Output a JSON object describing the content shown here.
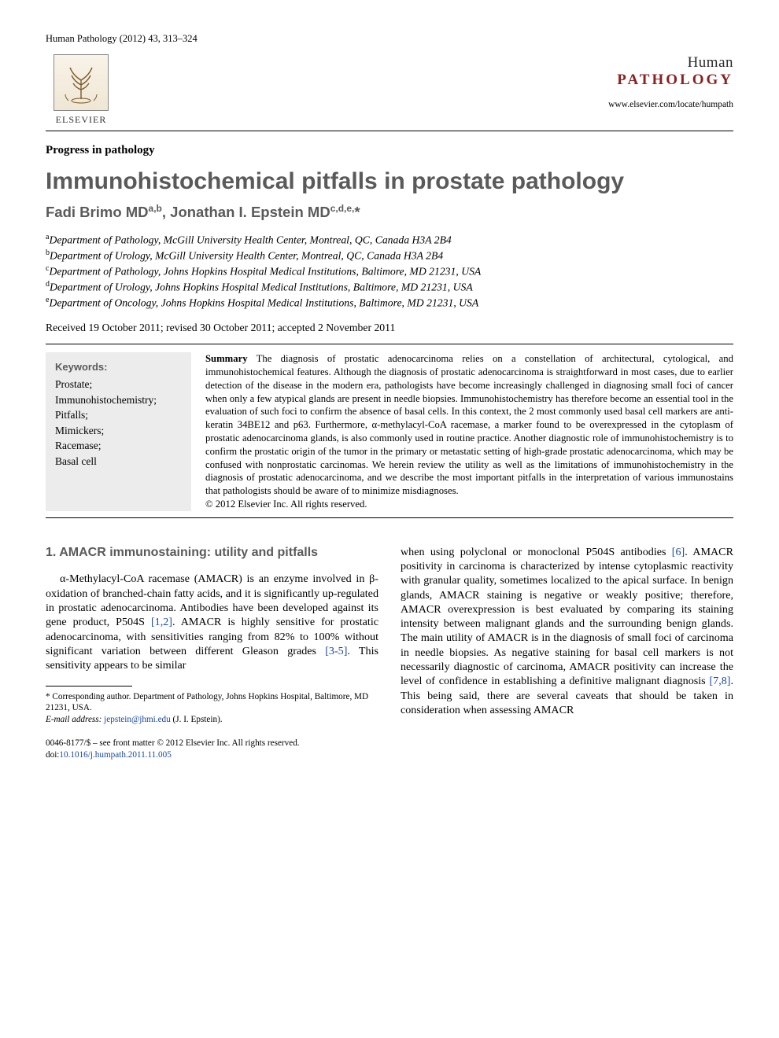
{
  "header": {
    "journal_ref": "Human Pathology (2012) 43, 313–324",
    "publisher_name": "ELSEVIER",
    "journal_name_line1": "Human",
    "journal_name_line2": "PATHOLOGY",
    "journal_url": "www.elsevier.com/locate/humpath"
  },
  "article": {
    "section_label": "Progress in pathology",
    "title": "Immunohistochemical pitfalls in prostate pathology",
    "authors_html": "Fadi Brimo MD<sup>a,b</sup>, Jonathan I. Epstein MD<sup>c,d,e,</sup>*",
    "affiliations": [
      {
        "sup": "a",
        "text": "Department of Pathology, McGill University Health Center, Montreal, QC, Canada H3A 2B4"
      },
      {
        "sup": "b",
        "text": "Department of Urology, McGill University Health Center, Montreal, QC, Canada H3A 2B4"
      },
      {
        "sup": "c",
        "text": "Department of Pathology, Johns Hopkins Hospital Medical Institutions, Baltimore, MD 21231, USA"
      },
      {
        "sup": "d",
        "text": "Department of Urology, Johns Hopkins Hospital Medical Institutions, Baltimore, MD 21231, USA"
      },
      {
        "sup": "e",
        "text": "Department of Oncology, Johns Hopkins Hospital Medical Institutions, Baltimore, MD 21231, USA"
      }
    ],
    "received": "Received 19 October 2011; revised 30 October 2011; accepted 2 November 2011"
  },
  "keywords": {
    "heading": "Keywords:",
    "items": [
      "Prostate;",
      "Immunohistochemistry;",
      "Pitfalls;",
      "Mimickers;",
      "Racemase;",
      "Basal cell"
    ]
  },
  "summary": {
    "heading": "Summary",
    "text": "The diagnosis of prostatic adenocarcinoma relies on a constellation of architectural, cytological, and immunohistochemical features. Although the diagnosis of prostatic adenocarcinoma is straightforward in most cases, due to earlier detection of the disease in the modern era, pathologists have become increasingly challenged in diagnosing small foci of cancer when only a few atypical glands are present in needle biopsies. Immunohistochemistry has therefore become an essential tool in the evaluation of such foci to confirm the absence of basal cells. In this context, the 2 most commonly used basal cell markers are anti-keratin 34BE12 and p63. Furthermore, α-methylacyl-CoA racemase, a marker found to be overexpressed in the cytoplasm of prostatic adenocarcinoma glands, is also commonly used in routine practice. Another diagnostic role of immunohistochemistry is to confirm the prostatic origin of the tumor in the primary or metastatic setting of high-grade prostatic adenocarcinoma, which may be confused with nonprostatic carcinomas. We herein review the utility as well as the limitations of immunohistochemistry in the diagnosis of prostatic adenocarcinoma, and we describe the most important pitfalls in the interpretation of various immunostains that pathologists should be aware of to minimize misdiagnoses.",
    "copyright": "© 2012 Elsevier Inc. All rights reserved."
  },
  "body": {
    "section1_heading": "1. AMACR immunostaining: utility and pitfalls",
    "col1_para": "α-Methylacyl-CoA racemase (AMACR) is an enzyme involved in β-oxidation of branched-chain fatty acids, and it is significantly up-regulated in prostatic adenocarcinoma. Antibodies have been developed against its gene product, P504S ",
    "col1_ref1": "[1,2]",
    "col1_para_cont": ". AMACR is highly sensitive for prostatic adenocarcinoma, with sensitivities ranging from 82% to 100% without significant variation between different Gleason grades ",
    "col1_ref2": "[3-5]",
    "col1_para_end": ". This sensitivity appears to be similar",
    "col2_para_start": "when using polyclonal or monoclonal P504S antibodies ",
    "col2_ref1": "[6]",
    "col2_para_cont": ". AMACR positivity in carcinoma is characterized by intense cytoplasmic reactivity with granular quality, sometimes localized to the apical surface. In benign glands, AMACR staining is negative or weakly positive; therefore, AMACR overexpression is best evaluated by comparing its staining intensity between malignant glands and the surrounding benign glands. The main utility of AMACR is in the diagnosis of small foci of carcinoma in needle biopsies. As negative staining for basal cell markers is not necessarily diagnostic of carcinoma, AMACR positivity can increase the level of confidence in establishing a definitive malignant diagnosis ",
    "col2_ref2": "[7,8]",
    "col2_para_end": ". This being said, there are several caveats that should be taken in consideration when assessing AMACR"
  },
  "footnotes": {
    "corresponding": "* Corresponding author. Department of Pathology, Johns Hopkins Hospital, Baltimore, MD 21231, USA.",
    "email_label": "E-mail address:",
    "email": "jepstein@jhmi.edu",
    "email_attribution": "(J. I. Epstein).",
    "issn_line": "0046-8177/$ – see front matter © 2012 Elsevier Inc. All rights reserved.",
    "doi_label": "doi:",
    "doi": "10.1016/j.humpath.2011.11.005"
  },
  "colors": {
    "heading_gray": "#5a5a5a",
    "journal_red": "#8a2020",
    "link_blue": "#1848a0",
    "keywords_bg": "#ececec",
    "background": "#ffffff",
    "text": "#000000"
  },
  "typography": {
    "body_font": "Times New Roman",
    "heading_font": "Arial",
    "title_size_pt": 22,
    "authors_size_pt": 14,
    "body_size_pt": 10.5,
    "summary_size_pt": 9.5,
    "footnote_size_pt": 8.5
  }
}
